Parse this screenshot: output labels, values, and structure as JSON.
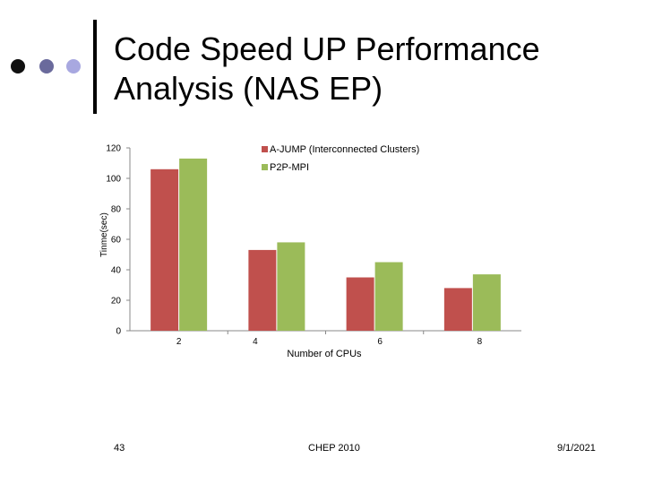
{
  "slide": {
    "title_line1": "Code Speed UP Performance",
    "title_line2": "Analysis (NAS EP)",
    "page_number": "43",
    "footer_center": "CHEP 2010",
    "date": "9/1/2021"
  },
  "colors": {
    "dot_dark": "#111111",
    "dot_mid": "#6a6a9c",
    "dot_light": "#a8a8e0",
    "series1": "#c0504d",
    "series2": "#9bbb59",
    "axis": "#888888"
  },
  "chart_data": {
    "type": "bar",
    "categories": [
      "2",
      "4",
      "6",
      "8"
    ],
    "series": [
      {
        "name": "A-JUMP (Interconnected Clusters)",
        "values": [
          106,
          53,
          35,
          28
        ]
      },
      {
        "name": "P2P-MPI",
        "values": [
          113,
          58,
          45,
          37
        ]
      }
    ],
    "xlabel": "Number of CPUs",
    "ylabel": "Tinme(sec)",
    "ylim": [
      0,
      120
    ],
    "yticks": [
      0,
      20,
      40,
      60,
      80,
      100,
      120
    ],
    "grid": false,
    "legend_position": "top-right"
  }
}
